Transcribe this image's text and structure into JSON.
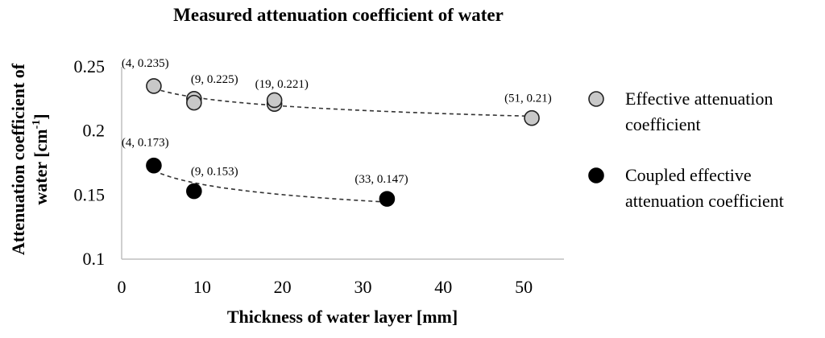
{
  "chart_data": {
    "type": "scatter",
    "title": "Measured attenuation coefficient of water",
    "xlabel": "Thickness of water layer [mm]",
    "ylabel_main": "Attenuation coefficient of",
    "ylabel_line2_prefix": "water [cm",
    "ylabel_sup": "-1",
    "ylabel_line2_suffix": "]",
    "xlim": [
      0,
      55
    ],
    "ylim": [
      0.1,
      0.25
    ],
    "x_ticks": [
      0,
      10,
      20,
      30,
      40,
      50
    ],
    "x_tick_labels": [
      "0",
      "10",
      "20",
      "30",
      "40",
      "50"
    ],
    "y_ticks": [
      0.1,
      0.15,
      0.2,
      0.25
    ],
    "y_tick_labels": [
      "0.1",
      "0.15",
      "0.2",
      "0.25"
    ],
    "grid": false,
    "legend_position": "right",
    "series": [
      {
        "name": "Effective attenuation coefficient",
        "legend_lines": [
          "Effective attenuation",
          "coefficient"
        ],
        "marker_fill": "#c8c8c8",
        "marker_stroke": "#222222",
        "trendline": true,
        "points": [
          {
            "x": 4,
            "y": 0.235,
            "label": "(4, 0.235)"
          },
          {
            "x": 9,
            "y": 0.225,
            "label": "(9, 0.225)"
          },
          {
            "x": 9,
            "y": 0.222,
            "label": ""
          },
          {
            "x": 19,
            "y": 0.221,
            "label": "(19, 0.221)"
          },
          {
            "x": 19,
            "y": 0.224,
            "label": ""
          },
          {
            "x": 51,
            "y": 0.21,
            "label": "(51, 0.21)"
          }
        ]
      },
      {
        "name": "Coupled effective attenuation coefficient",
        "legend_lines": [
          "Coupled effective",
          "attenuation coefficient"
        ],
        "marker_fill": "#000000",
        "marker_stroke": "#000000",
        "trendline": true,
        "points": [
          {
            "x": 4,
            "y": 0.173,
            "label": "(4, 0.173)"
          },
          {
            "x": 9,
            "y": 0.153,
            "label": "(9, 0.153)"
          },
          {
            "x": 33,
            "y": 0.147,
            "label": "(33, 0.147)"
          }
        ]
      }
    ]
  }
}
